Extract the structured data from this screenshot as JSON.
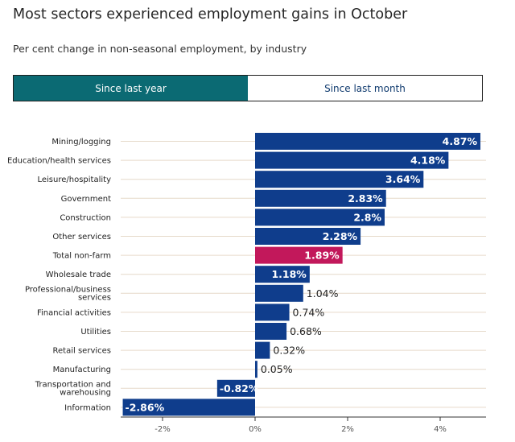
{
  "title": "Most sectors experienced employment gains in October",
  "subtitle": "Per cent change in non-seasonal employment, by industry",
  "tabs": [
    {
      "label": "Since last year",
      "active": true
    },
    {
      "label": "Since last month",
      "active": false
    }
  ],
  "colors": {
    "bar": "#0f3d8c",
    "highlight": "#c2185b",
    "tab_active": "#0b6a73",
    "grid": "#e6d9c9"
  },
  "chart_data": {
    "type": "bar",
    "orientation": "horizontal",
    "categories": [
      [
        "Mining/logging"
      ],
      [
        "Education/health services"
      ],
      [
        "Leisure/hospitality"
      ],
      [
        "Government"
      ],
      [
        "Construction"
      ],
      [
        "Other services"
      ],
      [
        "Total non-farm"
      ],
      [
        "Wholesale trade"
      ],
      [
        "Professional/business",
        "services"
      ],
      [
        "Financial activities"
      ],
      [
        "Utilities"
      ],
      [
        "Retail services"
      ],
      [
        "Manufacturing"
      ],
      [
        "Transportation and",
        "warehousing"
      ],
      [
        "Information"
      ]
    ],
    "values": [
      4.87,
      4.18,
      3.64,
      2.83,
      2.8,
      2.28,
      1.89,
      1.18,
      1.04,
      0.74,
      0.68,
      0.32,
      0.05,
      -0.82,
      -2.86
    ],
    "labels": [
      "4.87%",
      "4.18%",
      "3.64%",
      "2.83%",
      "2.8%",
      "2.28%",
      "1.89%",
      "1.18%",
      "1.04%",
      "0.74%",
      "0.68%",
      "0.32%",
      "0.05%",
      "-0.82%",
      "-2.86%"
    ],
    "highlight": "Total non-farm",
    "xticks": [
      "-2%",
      "0%",
      "2%",
      "4%"
    ],
    "xtick_values": [
      -2,
      0,
      2,
      4
    ],
    "xlim": [
      -2.86,
      4.87
    ]
  }
}
